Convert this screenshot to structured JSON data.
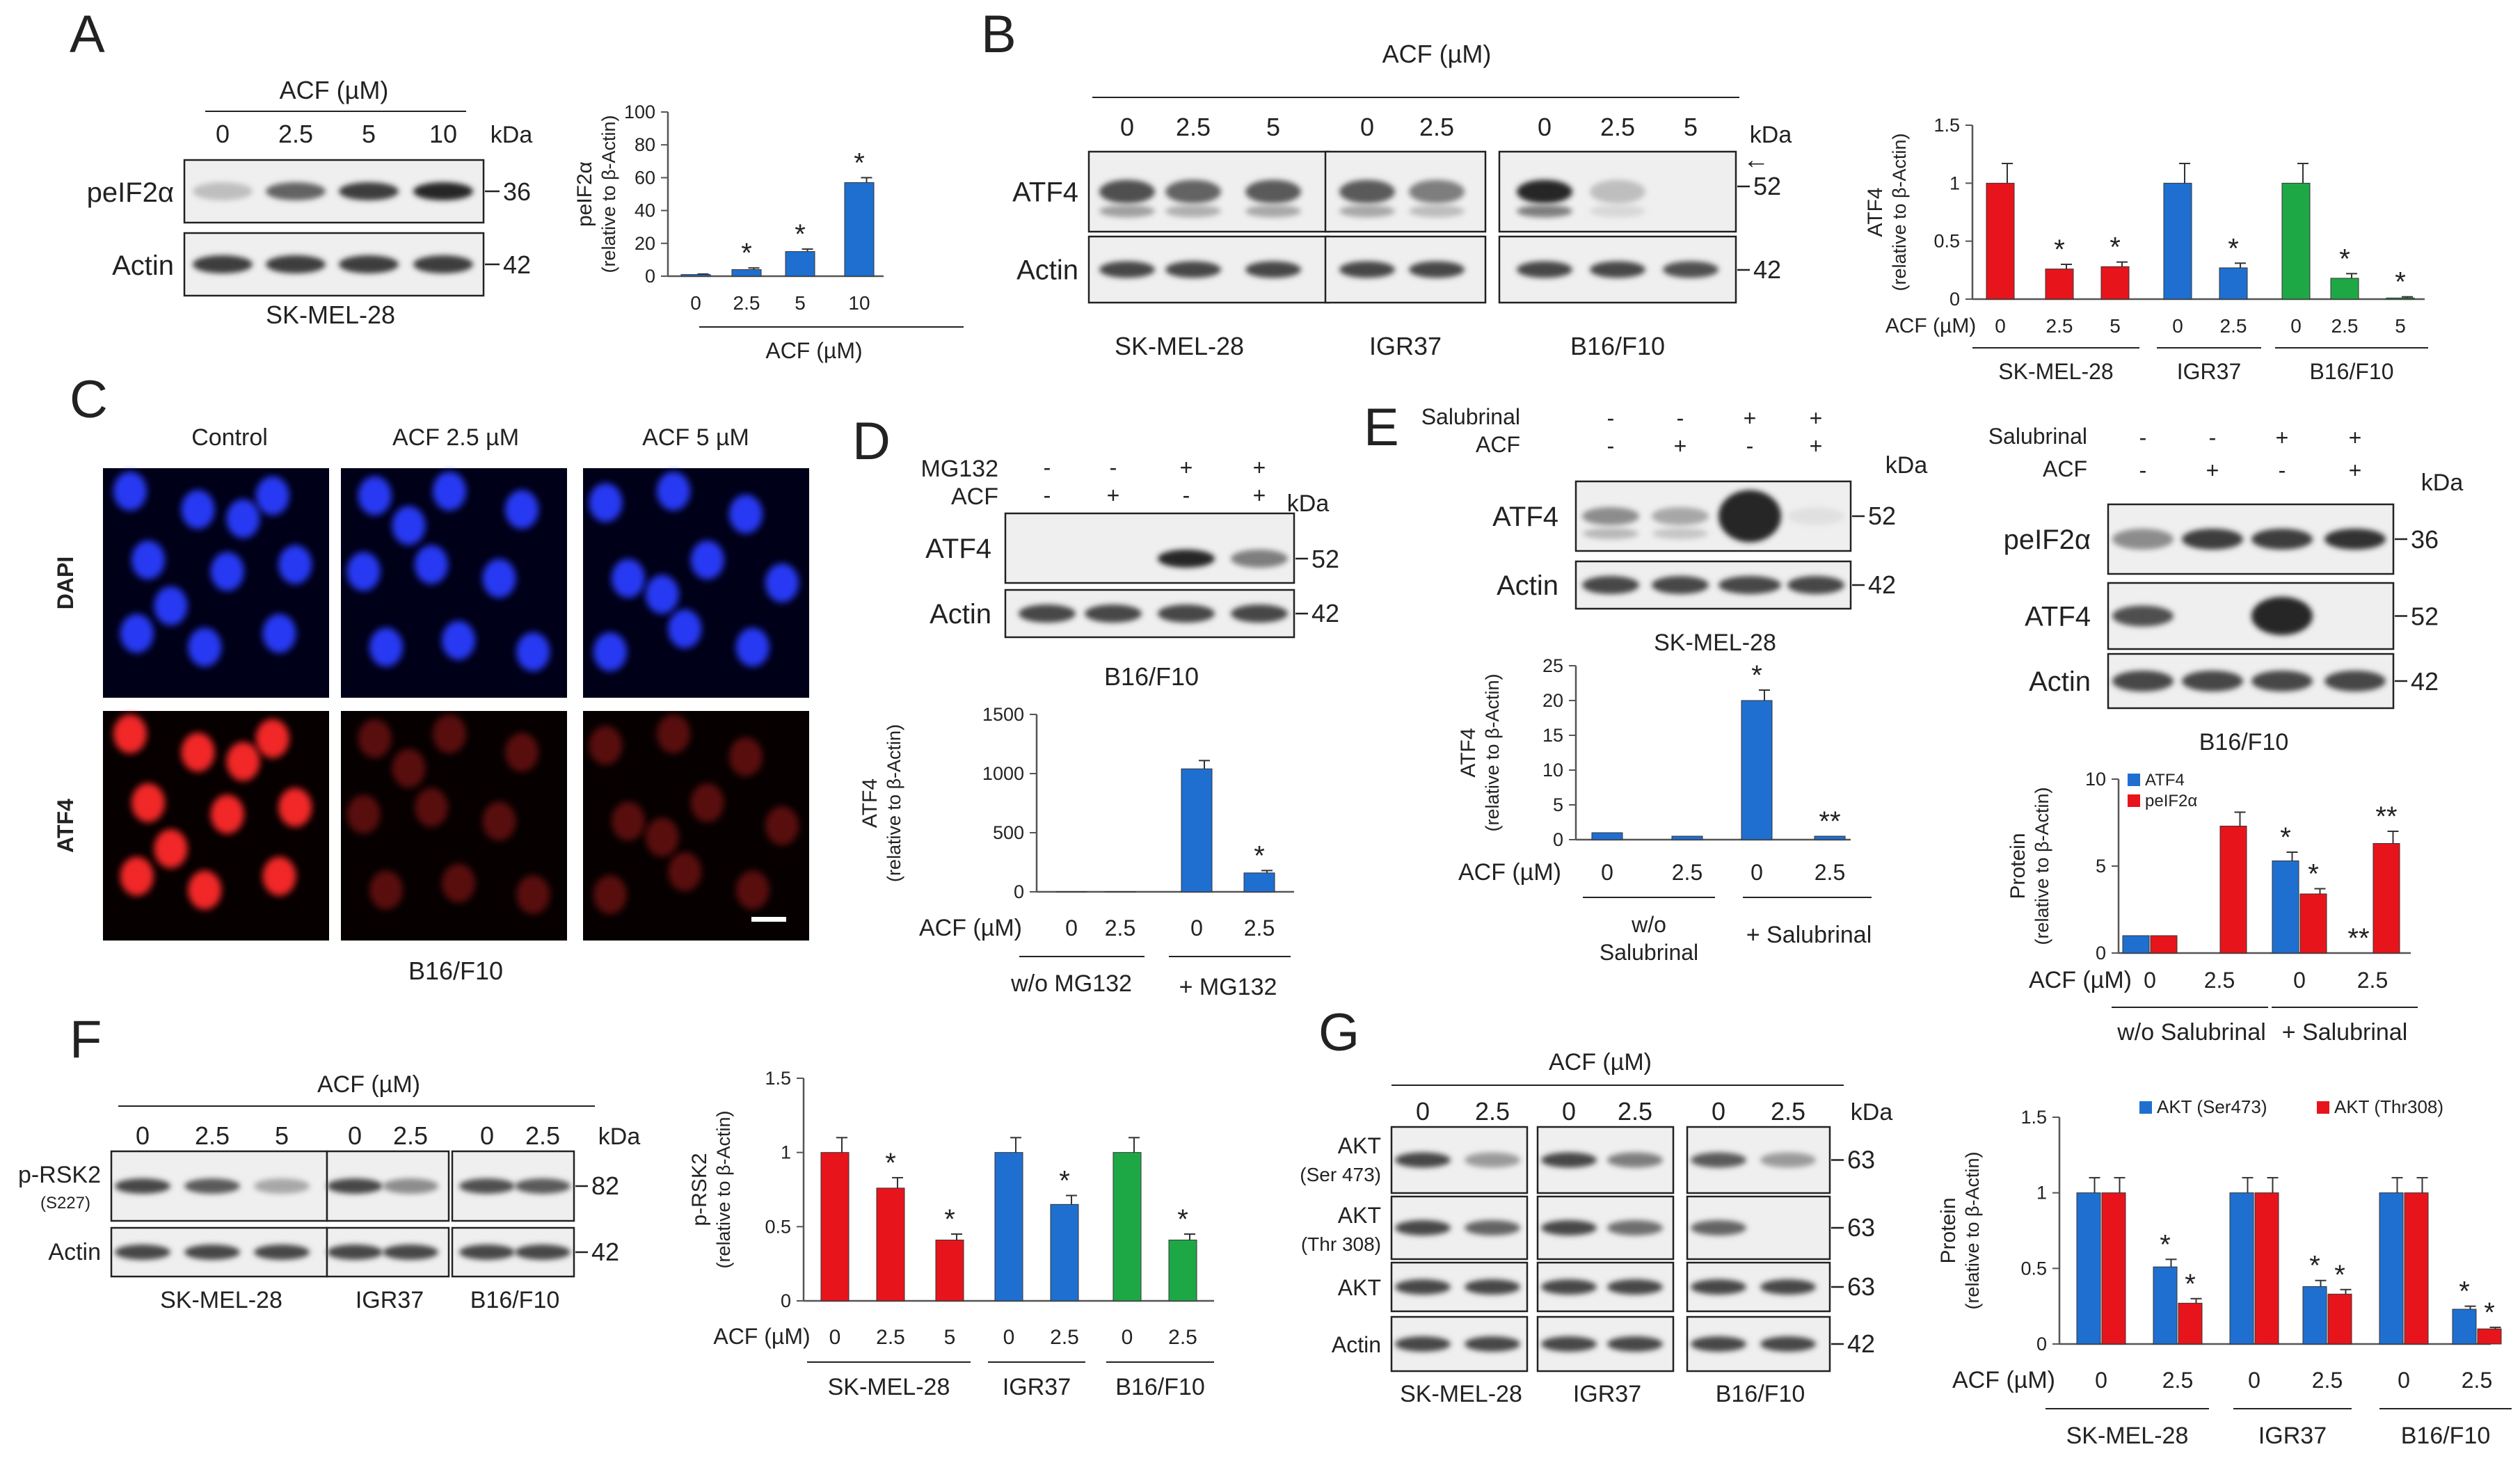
{
  "units": {
    "kda": "kDa"
  },
  "colors": {
    "red": "#e8141b",
    "blue": "#1f6fd0",
    "green": "#1ea845"
  },
  "panelA": {
    "letter": "A",
    "blot": {
      "header": "ACF (µM)",
      "lanes": [
        "0",
        "2.5",
        "5",
        "10"
      ],
      "rows": [
        {
          "label": "peIF2α",
          "kda": "36",
          "intensity": [
            0.35,
            0.7,
            0.9,
            1.0
          ]
        },
        {
          "label": "Actin",
          "kda": "42",
          "intensity": [
            0.9,
            0.9,
            0.9,
            0.9
          ]
        }
      ],
      "cell_line": "SK-MEL-28"
    },
    "chart": {
      "ylabel_line1": "peIF2α",
      "ylabel_line2": "(relative to β-Actin)",
      "yticks": [
        "0",
        "20",
        "40",
        "60",
        "80",
        "100"
      ],
      "xticks": [
        "0",
        "2.5",
        "5",
        "10"
      ],
      "values": [
        1,
        4,
        15,
        57
      ],
      "errors": [
        0.3,
        1,
        1.5,
        3
      ],
      "stars": [
        "",
        "*",
        "*",
        "*"
      ],
      "ymax": 100,
      "xlabel": "ACF (µM)"
    }
  },
  "panelB": {
    "letter": "B",
    "blot": {
      "header": "ACF (µM)",
      "groups": [
        {
          "name": "SK-MEL-28",
          "lanes": [
            "0",
            "2.5",
            "5"
          ]
        },
        {
          "name": "IGR37",
          "lanes": [
            "0",
            "2.5"
          ]
        },
        {
          "name": "B16/F10",
          "lanes": [
            "0",
            "2.5",
            "5"
          ]
        }
      ],
      "rows": [
        {
          "label": "ATF4",
          "kda": "52",
          "intensity": [
            [
              0.8,
              0.7,
              0.75
            ],
            [
              0.75,
              0.6
            ],
            [
              1.0,
              0.35,
              0.0
            ]
          ]
        },
        {
          "label": "Actin",
          "kda": "42",
          "intensity": [
            [
              0.85,
              0.85,
              0.85
            ],
            [
              0.85,
              0.85
            ],
            [
              0.85,
              0.85,
              0.8
            ]
          ]
        }
      ],
      "arrow": "←"
    },
    "chart": {
      "ylabel_line1": "ATF4",
      "ylabel_line2": "(relative to β-Actin)",
      "yticks": [
        "0",
        "0.5",
        "1",
        "1.5"
      ],
      "acf_label": "ACF (µM)",
      "groups": [
        {
          "name": "SK-MEL-28",
          "color": "red",
          "xticks": [
            "0",
            "2.5",
            "5"
          ],
          "values": [
            1,
            0.26,
            0.28
          ],
          "errors": [
            0.17,
            0.04,
            0.04
          ],
          "stars": [
            "",
            "*",
            "*"
          ]
        },
        {
          "name": "IGR37",
          "color": "blue",
          "xticks": [
            "0",
            "2.5"
          ],
          "values": [
            1,
            0.27
          ],
          "errors": [
            0.17,
            0.04
          ],
          "stars": [
            "",
            "*"
          ]
        },
        {
          "name": "B16/F10",
          "color": "green",
          "xticks": [
            "0",
            "2.5",
            "5"
          ],
          "values": [
            1,
            0.18,
            0.01
          ],
          "errors": [
            0.17,
            0.04,
            0.01
          ],
          "stars": [
            "",
            "*",
            "*"
          ]
        }
      ],
      "ymax": 1.5
    }
  },
  "panelC": {
    "letter": "C",
    "columns": [
      "Control",
      "ACF 2.5 µM",
      "ACF 5 µM"
    ],
    "rows": [
      "DAPI",
      "ATF4"
    ],
    "cell_line": "B16/F10"
  },
  "panelD": {
    "letter": "D",
    "treatments": [
      {
        "label": "MG132",
        "signs": [
          "-",
          "-",
          "+",
          "+"
        ]
      },
      {
        "label": "ACF",
        "signs": [
          "-",
          "+",
          "-",
          "+"
        ]
      }
    ],
    "rows": [
      {
        "label": "ATF4",
        "kda": "52",
        "intensity": [
          0,
          0,
          1.0,
          0.6
        ]
      },
      {
        "label": "Actin",
        "kda": "42",
        "intensity": [
          0.85,
          0.85,
          0.85,
          0.85
        ]
      }
    ],
    "cell_line": "B16/F10",
    "chart": {
      "ylabel_line1": "ATF4",
      "ylabel_line2": "(relative to β-Actin)",
      "yticks": [
        "0",
        "500",
        "1000",
        "1500"
      ],
      "xticks": [
        "0",
        "2.5",
        "0",
        "2.5"
      ],
      "values": [
        1,
        1,
        1040,
        160
      ],
      "errors": [
        0,
        0,
        70,
        20
      ],
      "stars": [
        "",
        "",
        "",
        "*"
      ],
      "ymax": 1500,
      "acf_label": "ACF (µM)",
      "groups": [
        "w/o MG132",
        "+ MG132"
      ]
    }
  },
  "panelE": {
    "letter": "E",
    "left": {
      "treatments": [
        {
          "label": "Salubrinal",
          "signs": [
            "-",
            "-",
            "+",
            "+"
          ]
        },
        {
          "label": "ACF",
          "signs": [
            "-",
            "+",
            "-",
            "+"
          ]
        }
      ],
      "rows": [
        {
          "label": "ATF4",
          "kda": "52",
          "intensity": [
            0.55,
            0.45,
            1.0,
            0.15
          ]
        },
        {
          "label": "Actin",
          "kda": "42",
          "intensity": [
            0.85,
            0.85,
            0.85,
            0.85
          ]
        }
      ],
      "cell_line": "SK-MEL-28",
      "chart": {
        "ylabel_line1": "ATF4",
        "ylabel_line2": "(relative to β-Actin)",
        "yticks": [
          "0",
          "5",
          "10",
          "15",
          "20",
          "25"
        ],
        "xticks": [
          "0",
          "2.5",
          "0",
          "2.5"
        ],
        "values": [
          1,
          0.5,
          20,
          0.5
        ],
        "errors": [
          0,
          0,
          1.5,
          0
        ],
        "stars": [
          "",
          "",
          "*",
          "**"
        ],
        "ymax": 25,
        "acf_label": "ACF (µM)",
        "group1_line1": "w/o",
        "group1_line2": "Salubrinal",
        "group2": "+ Salubrinal"
      }
    },
    "right": {
      "treatments": [
        {
          "label": "Salubrinal",
          "signs": [
            "-",
            "-",
            "+",
            "+"
          ]
        },
        {
          "label": "ACF",
          "signs": [
            "-",
            "+",
            "-",
            "+"
          ]
        }
      ],
      "rows": [
        {
          "label": "peIF2α",
          "kda": "36",
          "intensity": [
            0.55,
            0.9,
            0.9,
            0.95
          ]
        },
        {
          "label": "ATF4",
          "kda": "52",
          "intensity": [
            0.8,
            0.0,
            1.0,
            0.0
          ]
        },
        {
          "label": "Actin",
          "kda": "42",
          "intensity": [
            0.85,
            0.85,
            0.85,
            0.85
          ]
        }
      ],
      "cell_line": "B16/F10",
      "chart": {
        "ylabel_line1": "Protein",
        "ylabel_line2": "(relative to β-Actin)",
        "yticks": [
          "0",
          "5",
          "10"
        ],
        "xticks": [
          "0",
          "2.5",
          "0",
          "2.5"
        ],
        "legend": [
          "ATF4",
          "peIF2α"
        ],
        "series": [
          {
            "name": "ATF4",
            "color": "blue",
            "values": [
              1,
              0,
              5.3,
              0
            ],
            "errors": [
              0,
              0,
              0.5,
              0
            ],
            "stars": [
              "",
              "",
              "*",
              "**"
            ]
          },
          {
            "name": "peIF2α",
            "color": "red",
            "values": [
              1,
              7.3,
              3.4,
              6.3
            ],
            "errors": [
              0,
              0.8,
              0.3,
              0.7
            ],
            "stars": [
              "",
              "",
              "*",
              "**"
            ]
          }
        ],
        "ymax": 10,
        "acf_label": "ACF (µM)",
        "groups": [
          "w/o Salubrinal",
          "+ Salubrinal"
        ]
      }
    }
  },
  "panelF": {
    "letter": "F",
    "blot": {
      "header": "ACF (µM)",
      "groups": [
        {
          "name": "SK-MEL-28",
          "lanes": [
            "0",
            "2.5",
            "5"
          ]
        },
        {
          "name": "IGR37",
          "lanes": [
            "0",
            "2.5"
          ]
        },
        {
          "name": "B16/F10",
          "lanes": [
            "0",
            "2.5"
          ]
        }
      ],
      "rows": [
        {
          "label": "p-RSK2",
          "sublabel": "(S227)",
          "kda": "82",
          "intensity": [
            [
              0.85,
              0.75,
              0.45
            ],
            [
              0.85,
              0.55
            ],
            [
              0.8,
              0.75
            ]
          ]
        },
        {
          "label": "Actin",
          "kda": "42",
          "intensity": [
            [
              0.85,
              0.85,
              0.85
            ],
            [
              0.85,
              0.85
            ],
            [
              0.85,
              0.85
            ]
          ]
        }
      ]
    },
    "chart": {
      "ylabel_line1": "p-RSK2",
      "ylabel_line2": "(relative to β-Actin)",
      "yticks": [
        "0",
        "0.5",
        "1",
        "1.5"
      ],
      "acf_label": "ACF (µM)",
      "groups": [
        {
          "name": "SK-MEL-28",
          "color": "red",
          "xticks": [
            "0",
            "2.5",
            "5"
          ],
          "values": [
            1,
            0.76,
            0.41
          ],
          "errors": [
            0.1,
            0.07,
            0.04
          ],
          "stars": [
            "",
            "*",
            "*"
          ]
        },
        {
          "name": "IGR37",
          "color": "blue",
          "xticks": [
            "0",
            "2.5"
          ],
          "values": [
            1,
            0.65
          ],
          "errors": [
            0.1,
            0.06
          ],
          "stars": [
            "",
            "*"
          ]
        },
        {
          "name": "B16/F10",
          "color": "green",
          "xticks": [
            "0",
            "2.5"
          ],
          "values": [
            1,
            0.41
          ],
          "errors": [
            0.1,
            0.04
          ],
          "stars": [
            "",
            "*"
          ]
        }
      ],
      "ymax": 1.5
    }
  },
  "panelG": {
    "letter": "G",
    "blot": {
      "header": "ACF (µM)",
      "groups": [
        {
          "name": "SK-MEL-28",
          "lanes": [
            "0",
            "2.5"
          ]
        },
        {
          "name": "IGR37",
          "lanes": [
            "0",
            "2.5"
          ]
        },
        {
          "name": "B16/F10",
          "lanes": [
            "0",
            "2.5"
          ]
        }
      ],
      "rows": [
        {
          "label": "AKT",
          "sublabel": "(Ser 473)",
          "kda": "63",
          "intensity": [
            [
              0.85,
              0.5
            ],
            [
              0.85,
              0.6
            ],
            [
              0.75,
              0.5
            ]
          ]
        },
        {
          "label": "AKT",
          "sublabel": "(Thr 308)",
          "kda": "63",
          "intensity": [
            [
              0.85,
              0.7
            ],
            [
              0.85,
              0.65
            ],
            [
              0.7,
              0.0
            ]
          ]
        },
        {
          "label": "AKT",
          "kda": "63",
          "intensity": [
            [
              0.85,
              0.85
            ],
            [
              0.85,
              0.85
            ],
            [
              0.85,
              0.85
            ]
          ]
        },
        {
          "label": "Actin",
          "kda": "42",
          "intensity": [
            [
              0.85,
              0.85
            ],
            [
              0.85,
              0.85
            ],
            [
              0.85,
              0.85
            ]
          ]
        }
      ]
    },
    "chart": {
      "ylabel_line1": "Protein",
      "ylabel_line2": "(relative to β-Actin)",
      "yticks": [
        "0",
        "0.5",
        "1",
        "1.5"
      ],
      "acf_label": "ACF (µM)",
      "legend": [
        "AKT (Ser473)",
        "AKT (Thr308)"
      ],
      "groups": [
        {
          "name": "SK-MEL-28",
          "xticks": [
            "0",
            "2.5"
          ],
          "ser": [
            1,
            0.51
          ],
          "thr": [
            1,
            0.27
          ],
          "serErr": [
            0.1,
            0.05
          ],
          "thrErr": [
            0.1,
            0.03
          ],
          "serStar": [
            "",
            "*"
          ],
          "thrStar": [
            "",
            "*"
          ]
        },
        {
          "name": "IGR37",
          "xticks": [
            "0",
            "2.5"
          ],
          "ser": [
            1,
            0.38
          ],
          "thr": [
            1,
            0.33
          ],
          "serErr": [
            0.1,
            0.04
          ],
          "thrErr": [
            0.1,
            0.03
          ],
          "serStar": [
            "",
            "*"
          ],
          "thrStar": [
            "",
            "*"
          ]
        },
        {
          "name": "B16/F10",
          "xticks": [
            "0",
            "2.5"
          ],
          "ser": [
            1,
            0.23
          ],
          "thr": [
            1,
            0.1
          ],
          "serErr": [
            0.1,
            0.02
          ],
          "thrErr": [
            0.1,
            0.01
          ],
          "serStar": [
            "",
            "*"
          ],
          "thrStar": [
            "",
            "*"
          ]
        }
      ],
      "ymax": 1.5
    }
  },
  "chart_data": [
    {
      "type": "bar",
      "title": "",
      "ylabel": "peIF2α (relative to β-Actin)",
      "xlabel": "ACF (µM)",
      "categories": [
        "0",
        "2.5",
        "5",
        "10"
      ],
      "values": [
        1,
        4,
        15,
        57
      ],
      "ylim": [
        0,
        100
      ]
    },
    {
      "type": "bar",
      "ylabel": "ATF4 (relative to β-Actin)",
      "xlabel": "ACF (µM)",
      "categories": [
        "SK-MEL-28 0",
        "SK-MEL-28 2.5",
        "SK-MEL-28 5",
        "IGR37 0",
        "IGR37 2.5",
        "B16/F10 0",
        "B16/F10 2.5",
        "B16/F10 5"
      ],
      "values": [
        1,
        0.26,
        0.28,
        1,
        0.27,
        1,
        0.18,
        0.01
      ],
      "ylim": [
        0,
        1.5
      ]
    },
    {
      "type": "bar",
      "ylabel": "ATF4 (relative to β-Actin)",
      "xlabel": "ACF (µM)",
      "categories": [
        "w/o MG132 0",
        "w/o MG132 2.5",
        "+ MG132 0",
        "+ MG132 2.5"
      ],
      "values": [
        1,
        1,
        1040,
        160
      ],
      "ylim": [
        0,
        1500
      ]
    },
    {
      "type": "bar",
      "ylabel": "ATF4 (relative to β-Actin)",
      "xlabel": "ACF (µM)",
      "categories": [
        "w/o Salubrinal 0",
        "w/o Salubrinal 2.5",
        "+ Salubrinal 0",
        "+ Salubrinal 2.5"
      ],
      "values": [
        1,
        0.5,
        20,
        0.5
      ],
      "ylim": [
        0,
        25
      ]
    },
    {
      "type": "bar",
      "ylabel": "Protein (relative to β-Actin)",
      "xlabel": "ACF (µM)",
      "categories": [
        "w/o Salubrinal 0",
        "w/o Salubrinal 2.5",
        "+ Salubrinal 0",
        "+ Salubrinal 2.5"
      ],
      "series": [
        {
          "name": "ATF4",
          "values": [
            1,
            0,
            5.3,
            0
          ]
        },
        {
          "name": "peIF2α",
          "values": [
            1,
            7.3,
            3.4,
            6.3
          ]
        }
      ],
      "ylim": [
        0,
        10
      ]
    },
    {
      "type": "bar",
      "ylabel": "p-RSK2 (relative to β-Actin)",
      "xlabel": "ACF (µM)",
      "categories": [
        "SK-MEL-28 0",
        "SK-MEL-28 2.5",
        "SK-MEL-28 5",
        "IGR37 0",
        "IGR37 2.5",
        "B16/F10 0",
        "B16/F10 2.5"
      ],
      "values": [
        1,
        0.76,
        0.41,
        1,
        0.65,
        1,
        0.41
      ],
      "ylim": [
        0,
        1.5
      ]
    },
    {
      "type": "bar",
      "ylabel": "Protein (relative to β-Actin)",
      "xlabel": "ACF (µM)",
      "categories": [
        "SK-MEL-28 0",
        "SK-MEL-28 2.5",
        "IGR37 0",
        "IGR37 2.5",
        "B16/F10 0",
        "B16/F10 2.5"
      ],
      "series": [
        {
          "name": "AKT (Ser473)",
          "values": [
            1,
            0.51,
            1,
            0.38,
            1,
            0.23
          ]
        },
        {
          "name": "AKT (Thr308)",
          "values": [
            1,
            0.27,
            1,
            0.33,
            1,
            0.1
          ]
        }
      ],
      "ylim": [
        0,
        1.5
      ]
    }
  ]
}
